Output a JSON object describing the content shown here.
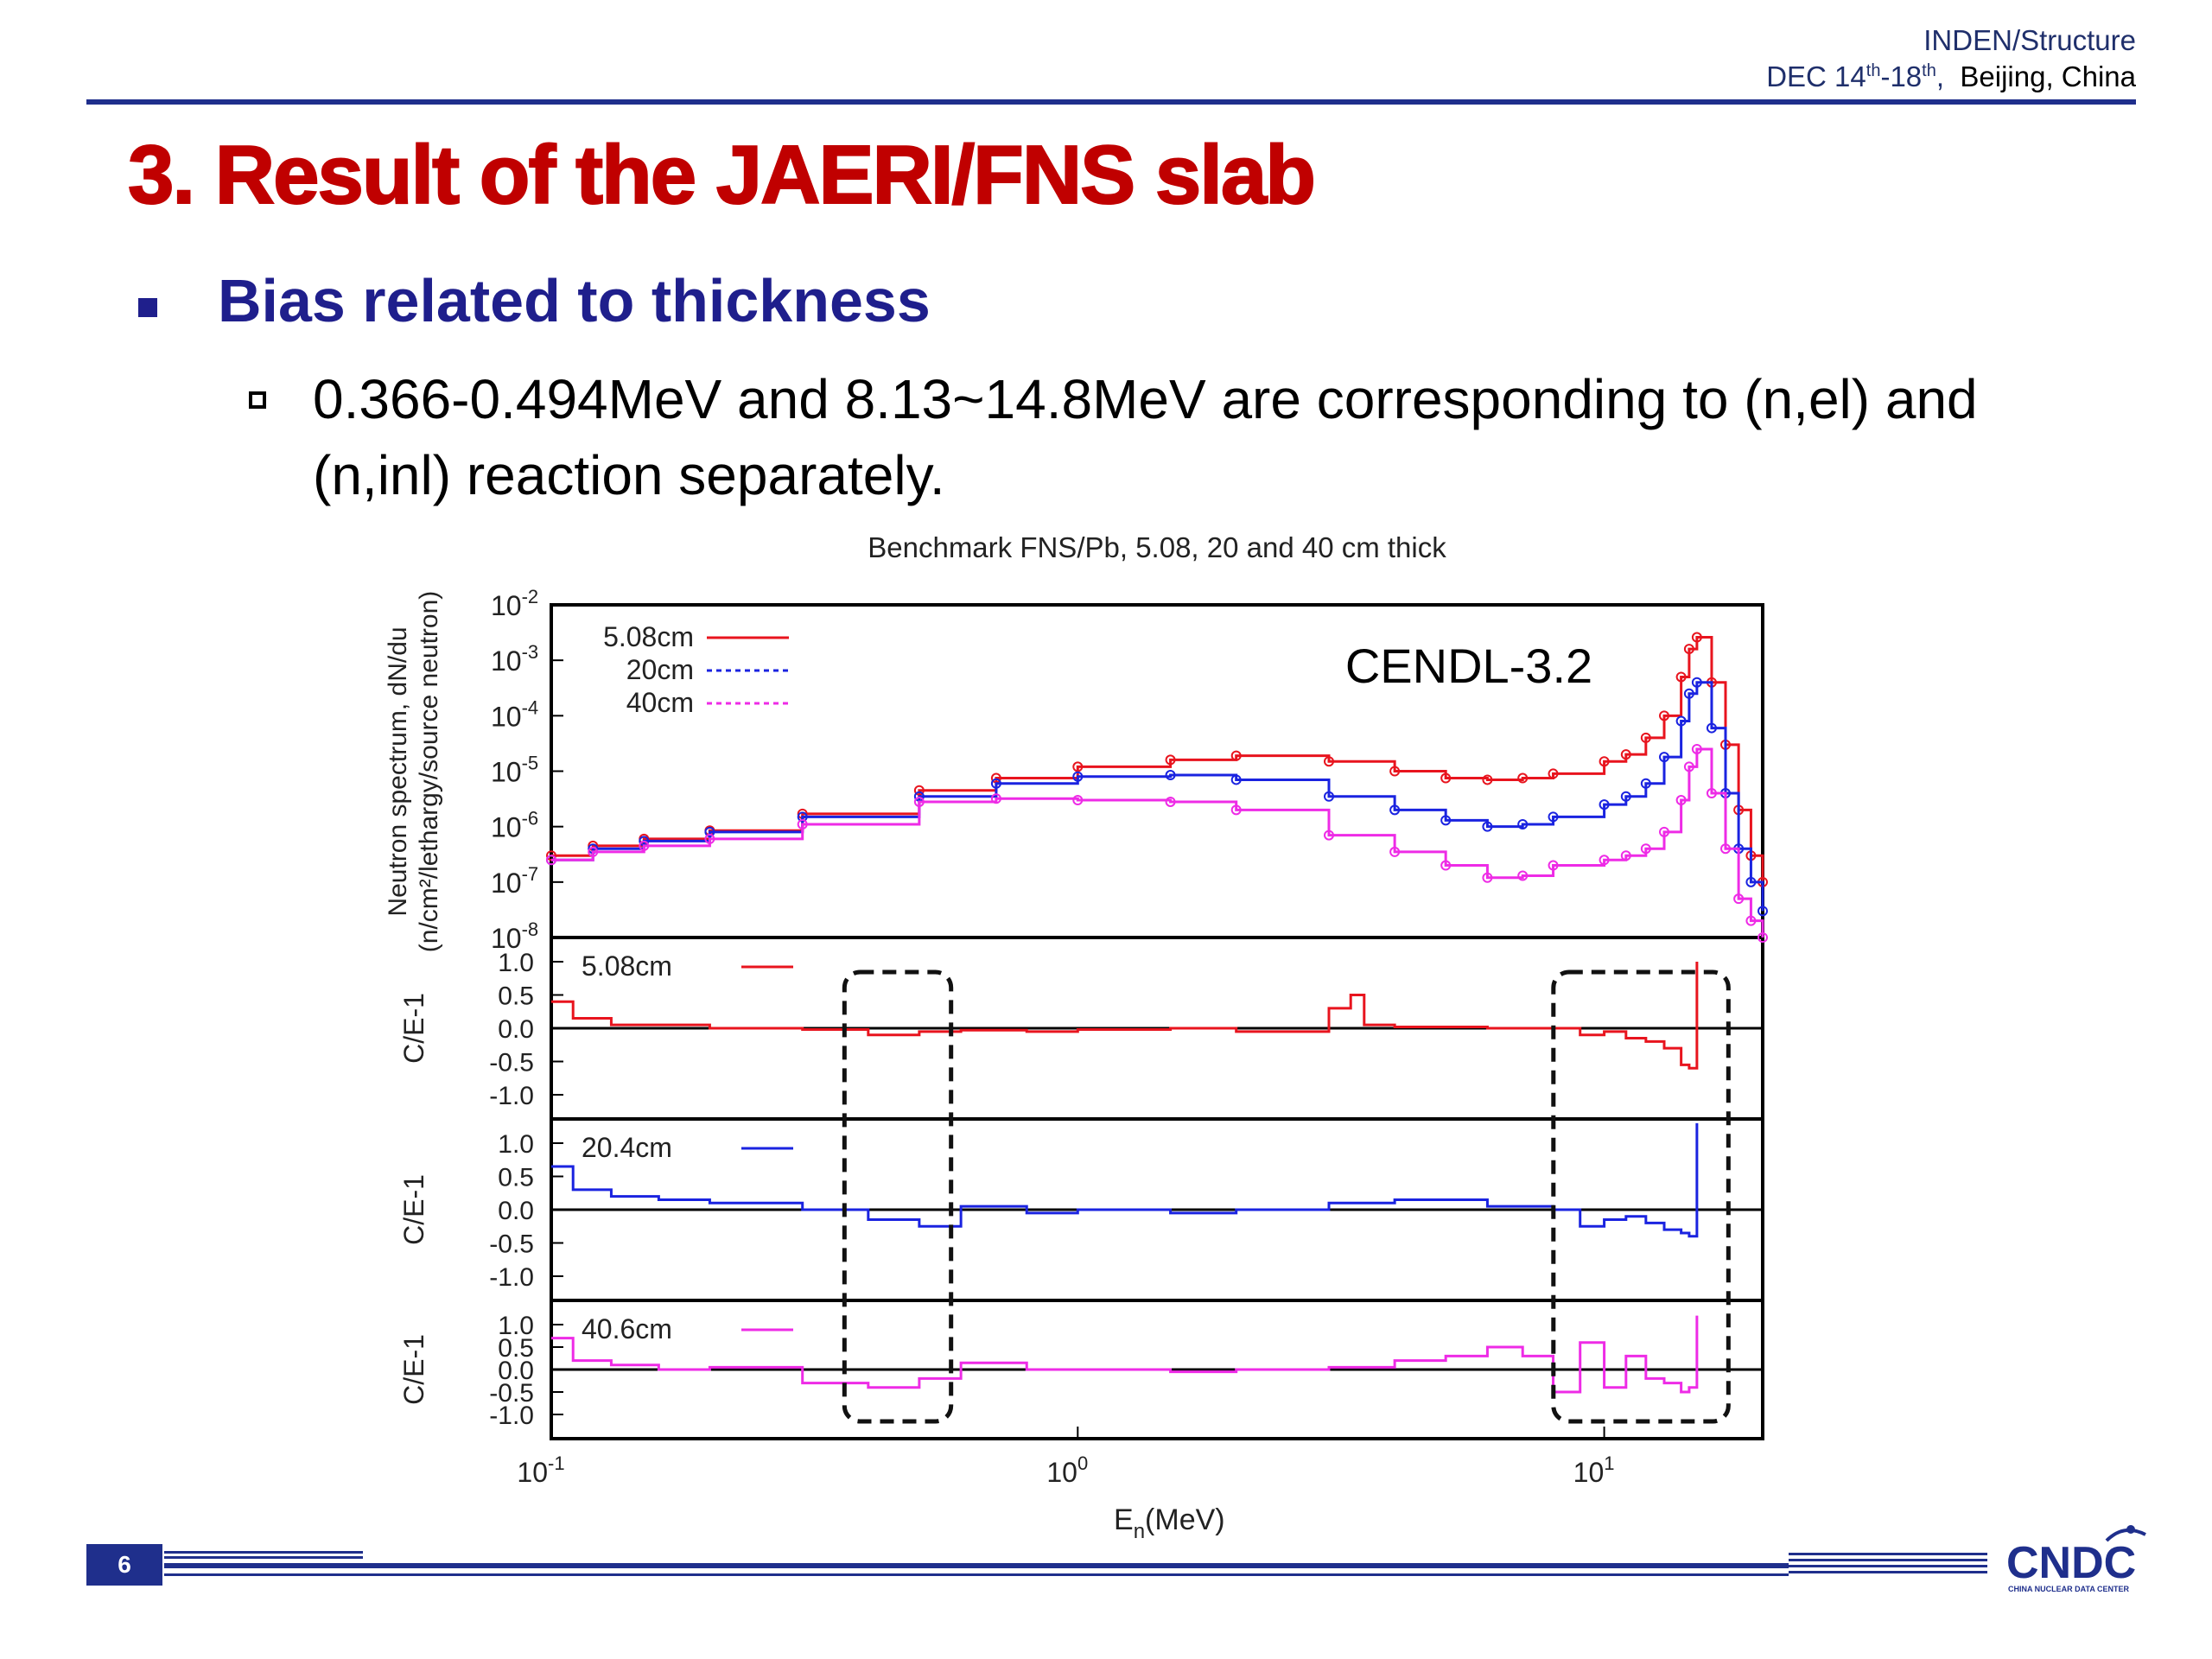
{
  "header": {
    "org": "INDEN/Structure",
    "date_prefix": "DEC 14",
    "date_sup1": "th",
    "date_mid": "-18",
    "date_sup2": "th",
    "date_suffix": ",",
    "location": "Beijing, China"
  },
  "slide": {
    "title": "3. Result of the JAERI/FNS slab",
    "bullet1": "Bias related to thickness",
    "bullet2": "0.366-0.494MeV and 8.13~14.8MeV are corresponding to (n,el) and (n,inl) reaction separately.",
    "page_number": "6",
    "logo_text": "CNDC",
    "logo_subtext": "CHINA NUCLEAR DATA CENTER"
  },
  "colors": {
    "title": "#c00000",
    "bullet": "#1f1f8c",
    "rule": "#1f2f8c",
    "series_5cm": "#e8141e",
    "series_20cm": "#1a23e0",
    "series_40cm": "#ee2be6"
  },
  "chart_data": {
    "type": "line",
    "title": "Benchmark FNS/Pb, 5.08, 20 and 40 cm thick",
    "annotation": "CENDL-3.2",
    "xlabel_main": "E",
    "xlabel_sub": "n",
    "xlabel_unit": "(MeV)",
    "x_scale": "log",
    "xlim": [
      0.1,
      20
    ],
    "x_ticks": [
      {
        "base": "10",
        "exp": "-1",
        "value": 0.1
      },
      {
        "base": "10",
        "exp": "0",
        "value": 1
      },
      {
        "base": "10",
        "exp": "1",
        "value": 10
      }
    ],
    "highlight_ranges_MeV": [
      [
        0.366,
        0.494
      ],
      [
        8.13,
        14.8
      ]
    ],
    "spectrum_panel": {
      "ylabel_line1": "Neutron spectrum, dN/du",
      "ylabel_line2": "(n/cm²/lethargy/source neutron)",
      "y_scale": "log",
      "ylim": [
        1e-08,
        0.01
      ],
      "y_ticks": [
        {
          "base": "10",
          "exp": "-2"
        },
        {
          "base": "10",
          "exp": "-3"
        },
        {
          "base": "10",
          "exp": "-4"
        },
        {
          "base": "10",
          "exp": "-5"
        },
        {
          "base": "10",
          "exp": "-6"
        },
        {
          "base": "10",
          "exp": "-7"
        },
        {
          "base": "10",
          "exp": "-8"
        }
      ],
      "legend_position": "top-left",
      "series": [
        {
          "name": "5.08cm",
          "x": [
            0.1,
            0.12,
            0.15,
            0.2,
            0.3,
            0.5,
            0.7,
            1.0,
            1.5,
            2.0,
            3.0,
            4.0,
            5.0,
            6.0,
            7.0,
            8.0,
            10.0,
            11.0,
            12.0,
            13.0,
            14.0,
            14.5,
            15.0,
            16.0,
            17.0,
            18.0,
            19.0,
            20.0
          ],
          "y": [
            3e-07,
            4.5e-07,
            6e-07,
            8.5e-07,
            1.7e-06,
            4.5e-06,
            7.5e-06,
            1.2e-05,
            1.6e-05,
            1.9e-05,
            1.5e-05,
            1e-05,
            7.5e-06,
            7e-06,
            7.5e-06,
            9e-06,
            1.5e-05,
            2e-05,
            4e-05,
            0.0001,
            0.0005,
            0.0016,
            0.0026,
            0.0004,
            3e-05,
            2e-06,
            3e-07,
            1e-07
          ]
        },
        {
          "name": "20cm",
          "x": [
            0.1,
            0.12,
            0.15,
            0.2,
            0.3,
            0.5,
            0.7,
            1.0,
            1.5,
            2.0,
            3.0,
            4.0,
            5.0,
            6.0,
            7.0,
            8.0,
            10.0,
            11.0,
            12.0,
            13.0,
            14.0,
            14.5,
            15.0,
            16.0,
            17.0,
            18.0,
            19.0,
            20.0
          ],
          "y": [
            2.5e-07,
            4e-07,
            5.5e-07,
            8e-07,
            1.5e-06,
            3.5e-06,
            6e-06,
            8e-06,
            8.5e-06,
            7e-06,
            3.5e-06,
            2e-06,
            1.3e-06,
            1e-06,
            1.1e-06,
            1.5e-06,
            2.5e-06,
            3.5e-06,
            6e-06,
            1.8e-05,
            8e-05,
            0.00025,
            0.0004,
            6e-05,
            4e-06,
            4e-07,
            1e-07,
            3e-08
          ]
        },
        {
          "name": "40cm",
          "x": [
            0.1,
            0.12,
            0.15,
            0.2,
            0.3,
            0.5,
            0.7,
            1.0,
            1.5,
            2.0,
            3.0,
            4.0,
            5.0,
            6.0,
            7.0,
            8.0,
            10.0,
            11.0,
            12.0,
            13.0,
            14.0,
            14.5,
            15.0,
            16.0,
            17.0,
            18.0,
            19.0,
            20.0
          ],
          "y": [
            2.5e-07,
            3.5e-07,
            4.5e-07,
            6e-07,
            1.1e-06,
            2.8e-06,
            3.2e-06,
            3e-06,
            2.8e-06,
            2e-06,
            7e-07,
            3.5e-07,
            2e-07,
            1.2e-07,
            1.3e-07,
            2e-07,
            2.5e-07,
            3e-07,
            4e-07,
            8e-07,
            3e-06,
            1.2e-05,
            2.5e-05,
            4e-06,
            4e-07,
            5e-08,
            2e-08,
            1e-08
          ]
        }
      ]
    },
    "ratio_panels": [
      {
        "name": "5.08cm",
        "ylabel": "C/E-1",
        "ylim": [
          -1.0,
          1.0
        ],
        "y_ticks": [
          "1.0",
          "0.5",
          "0.0",
          "-0.5",
          "-1.0"
        ],
        "x": [
          0.1,
          0.11,
          0.13,
          0.16,
          0.2,
          0.3,
          0.4,
          0.5,
          0.6,
          0.8,
          1.0,
          1.5,
          2.0,
          3.0,
          3.3,
          3.5,
          4.0,
          6.0,
          8.0,
          9.0,
          10.0,
          11.0,
          12.0,
          13.0,
          14.0,
          14.5,
          15.0
        ],
        "y": [
          0.4,
          0.15,
          0.05,
          0.05,
          0.0,
          -0.02,
          -0.1,
          -0.05,
          -0.03,
          -0.05,
          -0.02,
          0.0,
          -0.05,
          0.3,
          0.5,
          0.05,
          0.02,
          0.0,
          0.0,
          -0.1,
          -0.05,
          -0.15,
          -0.2,
          -0.3,
          -0.55,
          -0.6,
          1.0
        ]
      },
      {
        "name": "20.4cm",
        "ylabel": "C/E-1",
        "ylim": [
          -1.0,
          1.0
        ],
        "y_ticks": [
          "1.0",
          "0.5",
          "0.0",
          "-0.5",
          "-1.0"
        ],
        "x": [
          0.1,
          0.11,
          0.13,
          0.16,
          0.2,
          0.3,
          0.4,
          0.5,
          0.6,
          0.8,
          1.0,
          1.5,
          2.0,
          3.0,
          4.0,
          6.0,
          8.0,
          9.0,
          10.0,
          11.0,
          12.0,
          13.0,
          14.0,
          14.5,
          15.0
        ],
        "y": [
          0.65,
          0.3,
          0.2,
          0.15,
          0.1,
          0.0,
          -0.15,
          -0.25,
          0.05,
          -0.05,
          0.0,
          -0.05,
          0.0,
          0.1,
          0.15,
          0.05,
          0.0,
          -0.25,
          -0.15,
          -0.1,
          -0.2,
          -0.3,
          -0.35,
          -0.4,
          1.3
        ]
      },
      {
        "name": "40.6cm",
        "ylabel": "C/E-1",
        "ylim": [
          -1.0,
          1.0
        ],
        "y_ticks": [
          "1.0",
          "0.5",
          "0.0",
          "-0.5",
          "-1.0"
        ],
        "x": [
          0.1,
          0.11,
          0.13,
          0.16,
          0.2,
          0.3,
          0.4,
          0.5,
          0.6,
          0.8,
          1.0,
          1.5,
          2.0,
          3.0,
          4.0,
          5.0,
          6.0,
          7.0,
          8.0,
          9.0,
          10.0,
          11.0,
          12.0,
          13.0,
          14.0,
          14.5,
          15.0
        ],
        "y": [
          0.7,
          0.2,
          0.1,
          0.0,
          0.05,
          -0.3,
          -0.4,
          -0.2,
          0.15,
          0.0,
          0.0,
          -0.05,
          0.0,
          0.05,
          0.2,
          0.3,
          0.5,
          0.3,
          -0.5,
          0.6,
          -0.4,
          0.3,
          -0.2,
          -0.3,
          -0.5,
          -0.4,
          1.2
        ]
      }
    ],
    "grid": false
  }
}
